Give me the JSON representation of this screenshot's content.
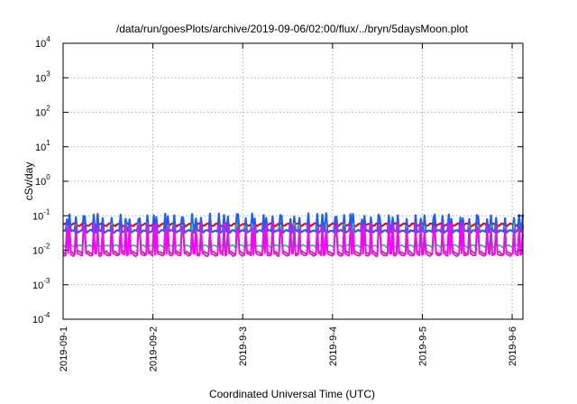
{
  "chart_data": {
    "type": "line",
    "title": "/data/run/goesPlots/archive/2019-09-06/02:00/flux/../bryn/5daysMoon.plot",
    "xlabel": "Coordinated Universal Time (UTC)",
    "ylabel": "cSv/day",
    "yscale": "log",
    "ylim": [
      0.0001,
      10000
    ],
    "xlim": [
      0,
      5.12
    ],
    "grid": true,
    "y_ticks": [
      {
        "base": "10",
        "exp": "-4",
        "value": 0.0001
      },
      {
        "base": "10",
        "exp": "-3",
        "value": 0.001
      },
      {
        "base": "10",
        "exp": "-2",
        "value": 0.01
      },
      {
        "base": "10",
        "exp": "-1",
        "value": 0.1
      },
      {
        "base": "10",
        "exp": "0",
        "value": 1
      },
      {
        "base": "10",
        "exp": "1",
        "value": 10
      },
      {
        "base": "10",
        "exp": "2",
        "value": 100
      },
      {
        "base": "10",
        "exp": "3",
        "value": 1000
      },
      {
        "base": "10",
        "exp": "4",
        "value": 10000
      }
    ],
    "x_ticks": [
      {
        "label": "2019-09-1",
        "value": 0
      },
      {
        "label": "2019-09-2",
        "value": 1
      },
      {
        "label": "2019-9-3",
        "value": 2
      },
      {
        "label": "2019-9-4",
        "value": 3
      },
      {
        "label": "2019-9-5",
        "value": 4
      },
      {
        "label": "2019-9-6",
        "value": 5
      }
    ],
    "series": [
      {
        "color": "#ff0000",
        "base": 0.055,
        "spike_to": 0.065,
        "width": 2.2
      },
      {
        "color": "#1e5cff",
        "base": 0.035,
        "spike_to": 0.12,
        "width": 2.2
      },
      {
        "color": "#2bbf9a",
        "base": 0.013,
        "spike_to": 0.06,
        "width": 1.8
      },
      {
        "color": "#a04060",
        "base": 0.0085,
        "spike_to": 0.05,
        "width": 1.8
      },
      {
        "color": "#ff00ff",
        "base": 0.0075,
        "spike_to": 0.065,
        "width": 1.8
      }
    ]
  }
}
